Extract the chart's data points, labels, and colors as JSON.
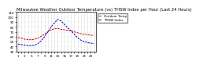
{
  "title": "Milwaukee Weather Outdoor Temperature (vs) THSW Index per Hour (Last 24 Hours)",
  "temp_color": "#cc0000",
  "thsw_color": "#0000cc",
  "background_color": "#ffffff",
  "plot_bg": "#ffffff",
  "hours": [
    1,
    2,
    3,
    4,
    5,
    6,
    7,
    8,
    9,
    10,
    11,
    12,
    13,
    14,
    15,
    16,
    17,
    18,
    19,
    20,
    21,
    22,
    23,
    24
  ],
  "temp_values": [
    58,
    57,
    55,
    54,
    54,
    55,
    57,
    61,
    65,
    70,
    74,
    76,
    77,
    75,
    74,
    73,
    72,
    70,
    68,
    66,
    65,
    64,
    63,
    63
  ],
  "thsw_values": [
    45,
    44,
    43,
    42,
    42,
    43,
    46,
    52,
    60,
    70,
    80,
    88,
    95,
    92,
    85,
    78,
    72,
    65,
    58,
    53,
    50,
    48,
    47,
    46
  ],
  "ylim_min": 30,
  "ylim_max": 110,
  "title_fontsize": 3.8,
  "tick_fontsize": 3.0,
  "legend_fontsize": 3.0,
  "grid_color": "#aaaaaa",
  "line_width": 0.7,
  "legend_temp_label": "Outdoor Temp",
  "legend_thsw_label": "THSW Index"
}
